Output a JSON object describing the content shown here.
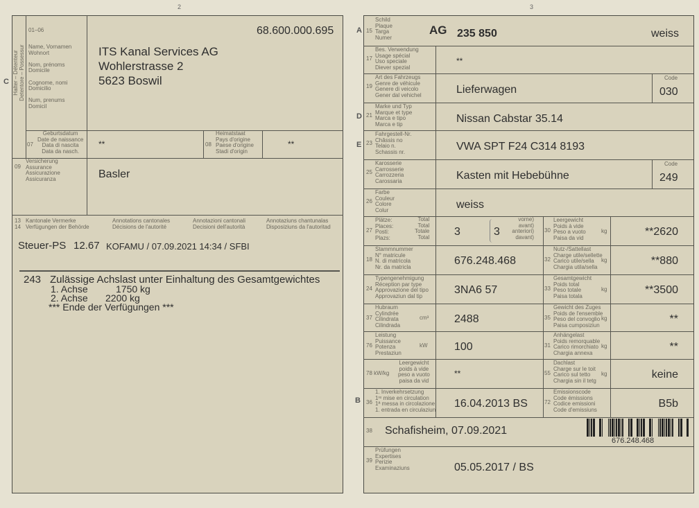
{
  "page_numbers": {
    "left": "2",
    "right": "3"
  },
  "holder": {
    "section_letter": "C",
    "vertical_label": "Halter – Détenteur\nDetentore – Possessur",
    "field_range": "01–06",
    "labels": "Name, Vornamen\nWohnort\n\nNom, prénoms\nDomicile\n\nCognome, nomi\nDomicilio\n\nNum, prenums\nDomicil",
    "id_number": "68.600.000.695",
    "address": "ITS Kanal Services AG\nWohlerstrasse 2\n5623 Boswil",
    "f07": {
      "num": "07",
      "label": "Geburtsdatum\nDate de naissance\nData di nascita\nData da nasch.",
      "value": "**"
    },
    "f08": {
      "num": "08",
      "label": "Heimatstaat\nPays d'origine\nPaese d'origine\nStadi d'origin",
      "value": "**"
    },
    "f09": {
      "num": "09",
      "label": "Versicherung\nAssurance\nAssicurazione\nAssicuranza",
      "value": "Basler"
    }
  },
  "annotations": {
    "num13": "13",
    "num14": "14",
    "de": "Kantonale Vermerke\nVerfügungen der Behörde",
    "fr": "Annotations cantonales\nDécisions de l'autorité",
    "it": "Annotazioni cantonali\nDecisioni dell'autorità",
    "rm": "Annotaziuns chantunalas\nDisposiziuns da l'autoritad",
    "tax_label": "Steuer-PS",
    "tax_value": "12.67",
    "tax_note": "KOFAMU / 07.09.2021 14:34 / SFBI",
    "code": "243",
    "decision": "Zulässige Achslast unter Einhaltung des Gesamtgewichtes",
    "axle1_label": "1. Achse",
    "axle1_value": "1750 kg",
    "axle2_label": "2. Achse",
    "axle2_value": "2200 kg",
    "end": "*** Ende der Verfügungen ***"
  },
  "vehicle": {
    "letters": {
      "a": "A",
      "d": "D",
      "e": "E",
      "b": "B"
    },
    "f15": {
      "num": "15",
      "label": "Schild\nPlaque\nTarga\nNumer",
      "canton": "AG",
      "plate": "235 850",
      "color": "weiss"
    },
    "f17": {
      "num": "17",
      "label": "Bes. Verwendung\nUsage spécial\nUso speciale\nDiever spezial",
      "value": "**"
    },
    "f19": {
      "num": "19",
      "label": "Art des Fahrzeugs\nGenre de véhicule\nGenere di veicolo\nGener dal vehichel",
      "value": "Lieferwagen",
      "code_label": "Code",
      "code": "030"
    },
    "f21": {
      "num": "21",
      "label": "Marke und Typ\nMarque et type\nMarca e tipo\nMarca e tip",
      "value": "Nissan Cabstar 35.14"
    },
    "f23": {
      "num": "23",
      "label": "Fahrgestell-Nr.\nChâssis no\nTelaio n.\nSchassis nr.",
      "value": "VWA SPT F24 C314 8193"
    },
    "f25": {
      "num": "25",
      "label": "Karosserie\nCarrosserie\nCarrozzeria\nCarossaria",
      "value": "Kasten mit Hebebühne",
      "code_label": "Code",
      "code": "249"
    },
    "f26": {
      "num": "26",
      "label": "Farbe\nCouleur\nColore\nColur",
      "value": "weiss"
    },
    "f27": {
      "num": "27",
      "label": "Plätze:\nPlaces:\nPosti:\nPlazs:",
      "label2": "Total\nTotal\nTotale\nTotal",
      "value": "3",
      "front": "3",
      "front_label": "vorne)\navant)\nanteriori)\ndavant)"
    },
    "f30": {
      "num": "30",
      "label": "Leergewicht\nPoids à vide\nPeso a vuoto\nPaisa da vid",
      "unit": "kg",
      "value": "**2620"
    },
    "f18": {
      "num": "18",
      "label": "Stammnummer\nN° matricule\nN. di matricola\nNr. da matricla",
      "value": "676.248.468"
    },
    "f32": {
      "num": "32",
      "label": "Nutz-/Sattellast\nCharge utile/sellette\nCarico utile/sella\nChargia utila/sella",
      "unit": "kg",
      "value": "**880"
    },
    "f24": {
      "num": "24",
      "label": "Typengenehmigung\nRéception par type\nApprovazione del tipo\nApprovaziun dal tip",
      "value": "3NA6 57"
    },
    "f33": {
      "num": "33",
      "label": "Gesamtgewicht\nPoids total\nPeso totale\nPaisa totala",
      "unit": "kg",
      "value": "**3500"
    },
    "f37": {
      "num": "37",
      "label": "Hubraum\nCylindrée\nCilindrata\nCilindrada",
      "unit": "cm³",
      "value": "2488"
    },
    "f35": {
      "num": "35",
      "label": "Gewicht des Zuges\nPoids de l'ensemble\nPeso del convoglio\nPaisa cumposiziun",
      "unit": "kg",
      "value": "**"
    },
    "f76": {
      "num": "76",
      "label": "Leistung\nPuissance\nPotenza\nPrestaziun",
      "unit": "kW",
      "value": "100"
    },
    "f31": {
      "num": "31",
      "label": "Anhängelast\nPoids remorquable\nCarico rimorchiato\nChargia annexa",
      "unit": "kg",
      "value": "**"
    },
    "f78": {
      "num": "78 kW/kg",
      "label": "Leergewicht\npoids à vide\npeso a vuoto\npaisa da vid",
      "value": "**"
    },
    "f55": {
      "num": "55",
      "label": "Dachlast\nCharge sur le toit\nCarico sul tetto\nChargia sin il tetg",
      "unit": "kg",
      "value": "keine"
    },
    "f36": {
      "num": "36",
      "label": "1. Inverkehrsetzung\n1ʳᵉ mise en circulation\n1ª messa in circolazione\n1. entrada en circulaziun",
      "value": "16.04.2013 BS"
    },
    "f72": {
      "num": "72",
      "label": "Emissionscode\nCode émissions\nCodice emissioni\nCode d'emissiuns",
      "value": "B5b"
    },
    "f38": {
      "num": "38",
      "value": "Schafisheim, 07.09.2021",
      "barcode_text": "676.248.468"
    },
    "f39": {
      "num": "39",
      "label": "Prüfungen\nExpertises\nPerizie\nExaminaziuns",
      "value": "05.05.2017 / BS"
    }
  }
}
